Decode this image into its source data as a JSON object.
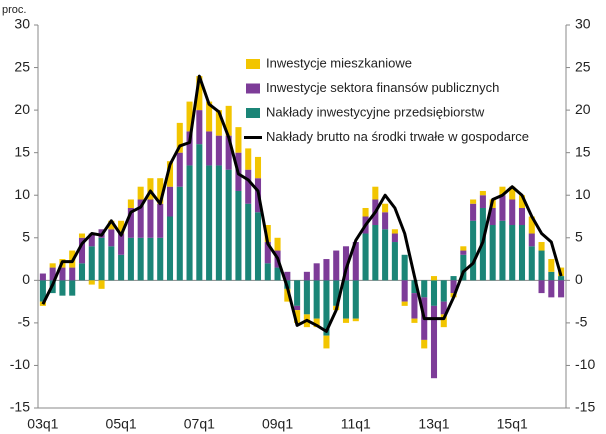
{
  "chart_data": {
    "type": "bar-line",
    "y_unit_label": "proc.",
    "categories": [
      "03q1",
      null,
      null,
      null,
      null,
      null,
      null,
      null,
      "05q1",
      null,
      null,
      null,
      null,
      null,
      null,
      null,
      "07q1",
      null,
      null,
      null,
      null,
      null,
      null,
      null,
      "09q1",
      null,
      null,
      null,
      null,
      null,
      null,
      null,
      "11q1",
      null,
      null,
      null,
      null,
      null,
      null,
      null,
      "13q1",
      null,
      null,
      null,
      null,
      null,
      null,
      null,
      "15q1",
      null,
      null,
      null,
      null,
      null
    ],
    "series": [
      {
        "name": "Inwestycje mieszkaniowe",
        "kind": "bar",
        "color": "#f2c500",
        "values": [
          -0.5,
          0.5,
          1,
          2,
          0.5,
          -0.5,
          -1,
          1,
          1.5,
          1,
          1.5,
          2.5,
          3,
          3,
          3.5,
          3.5,
          4,
          3.5,
          3,
          3.5,
          3,
          2.5,
          2.5,
          2,
          1.5,
          -1.5,
          -1.5,
          -1.5,
          -1,
          -1.5,
          -0.5,
          -0.5,
          -0.3,
          1,
          1.5,
          1,
          0.5,
          -0.5,
          -0.5,
          -1,
          0.5,
          -1.5,
          -0.5,
          0.5,
          0.5,
          0.5,
          1,
          1,
          1.5,
          1.5,
          2,
          1,
          1.5,
          1
        ]
      },
      {
        "name": "Inwestycje sektora finansów publicznych",
        "kind": "bar",
        "color": "#7d3c98",
        "values": [
          0.8,
          1.5,
          1.5,
          1.5,
          3,
          1.5,
          1,
          2,
          2.5,
          3.5,
          4.5,
          4.5,
          4,
          3.5,
          4,
          4,
          4,
          4,
          3.5,
          4,
          4.5,
          4,
          4,
          2.5,
          2,
          1,
          -0.5,
          1,
          2,
          2.5,
          3.5,
          4,
          4.5,
          2,
          3,
          2,
          1,
          -2.5,
          -3,
          -5,
          -8.5,
          -1.5,
          -1.5,
          0.5,
          2,
          1.5,
          2,
          3,
          3,
          2,
          1.5,
          -1.5,
          -2,
          -2
        ]
      },
      {
        "name": "Nakłady inwestycyjne przedsiębiorstw",
        "kind": "bar",
        "color": "#1b8577",
        "values": [
          -2.5,
          -1.5,
          -1.8,
          -1.8,
          2,
          4,
          5,
          4,
          3,
          5,
          5,
          5,
          5,
          7.5,
          11,
          13.5,
          16,
          13.5,
          13.5,
          13,
          10.5,
          9,
          8,
          2,
          1.5,
          -1,
          -3,
          -4,
          -4.5,
          -6.5,
          -3,
          -4.5,
          -4.5,
          5.5,
          6.5,
          6,
          4.5,
          3,
          -1.5,
          -2,
          -3,
          -2.5,
          0.5,
          3,
          7,
          8.5,
          6.5,
          7,
          6.5,
          6.5,
          4,
          3.5,
          1,
          0.5
        ]
      },
      {
        "name": "Nakłady brutto na środki trwałe w gospodarce",
        "kind": "line",
        "color": "#000000",
        "values": [
          -2.8,
          -0.5,
          2.2,
          2.2,
          4.3,
          5.5,
          5.3,
          7,
          5.3,
          8,
          8.6,
          10.5,
          9,
          13.6,
          15.8,
          16.2,
          24,
          20.7,
          19.8,
          16.8,
          12.5,
          11.8,
          10.5,
          4.3,
          2.6,
          -0.8,
          -5.3,
          -4.7,
          -5.3,
          -6,
          -3.5,
          1.3,
          4.7,
          6.5,
          8,
          10,
          8.5,
          5.5,
          0.5,
          -4.5,
          -4.5,
          -4.5,
          -2,
          1,
          2,
          4.5,
          9.5,
          10,
          11,
          10,
          7.5,
          5.5,
          4.5,
          0.5
        ]
      }
    ],
    "ylim": [
      -15,
      30
    ],
    "yticks": [
      -15,
      -10,
      -5,
      0,
      5,
      10,
      15,
      20,
      25,
      30
    ],
    "y2lim": [
      -15,
      30
    ],
    "y2ticks": [
      -15,
      -10,
      -5,
      0,
      5,
      10,
      15,
      20,
      25,
      30
    ]
  }
}
